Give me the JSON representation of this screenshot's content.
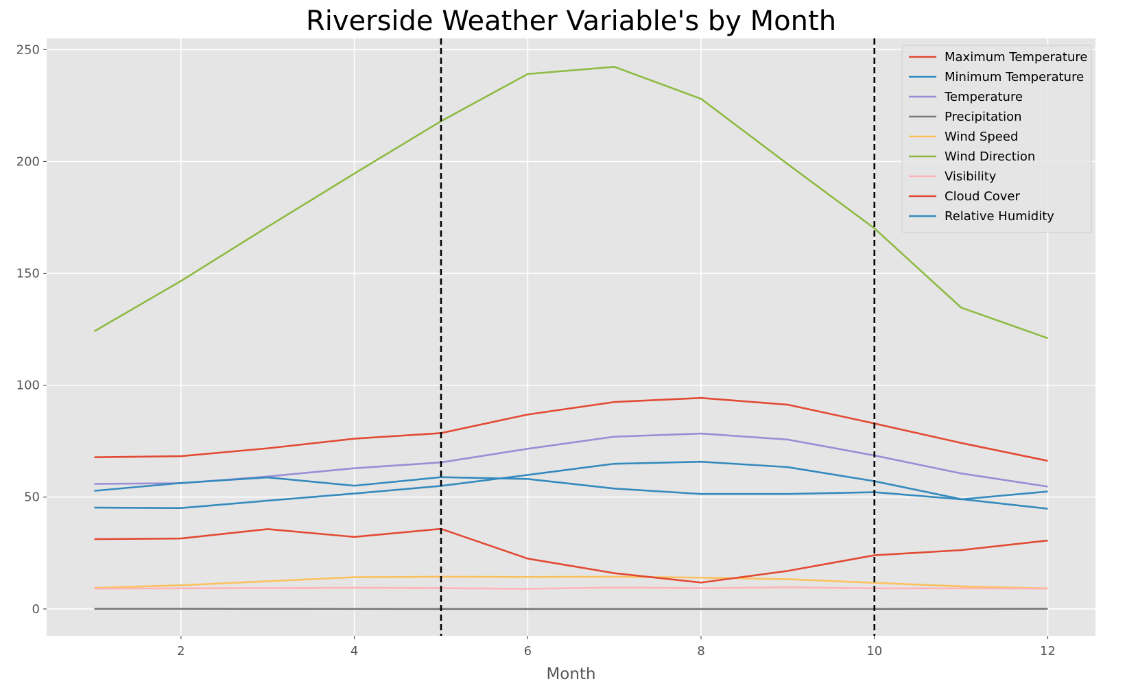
{
  "chart_data": {
    "type": "line",
    "title": "Riverside Weather Variable's by Month",
    "xlabel": "Month",
    "ylabel": "",
    "xlim": [
      0.45,
      12.55
    ],
    "ylim": [
      -12,
      255
    ],
    "xticks": [
      2,
      4,
      6,
      8,
      10,
      12
    ],
    "yticks": [
      0,
      50,
      100,
      150,
      200,
      250
    ],
    "grid": true,
    "legend_position": "top-right",
    "x": [
      1,
      2,
      3,
      4,
      5,
      6,
      7,
      8,
      9,
      10,
      11,
      12
    ],
    "vlines": [
      5,
      10
    ],
    "series": [
      {
        "name": "Maximum Temperature",
        "color": "#E24A33",
        "values": [
          67.8,
          68.3,
          71.8,
          76.1,
          78.6,
          86.9,
          92.5,
          94.3,
          91.3,
          82.9,
          74.2,
          66.2
        ]
      },
      {
        "name": "Minimum Temperature",
        "color": "#348ABD",
        "values": [
          45.3,
          45.1,
          48.4,
          51.6,
          55.0,
          59.9,
          64.9,
          65.8,
          63.4,
          57.1,
          49.1,
          44.8
        ]
      },
      {
        "name": "Temperature",
        "color": "#988ED5",
        "values": [
          55.9,
          56.2,
          59.2,
          62.9,
          65.5,
          71.6,
          77.0,
          78.4,
          75.7,
          68.6,
          60.6,
          54.7
        ]
      },
      {
        "name": "Precipitation",
        "color": "#777777",
        "values": [
          0.1,
          0.1,
          0.05,
          0.03,
          0.01,
          0.0,
          0.0,
          0.0,
          0.01,
          0.02,
          0.05,
          0.08
        ]
      },
      {
        "name": "Wind Speed",
        "color": "#FBC15E",
        "values": [
          9.4,
          10.6,
          12.4,
          14.2,
          14.4,
          14.3,
          14.4,
          14.0,
          13.3,
          11.7,
          10.1,
          9.2
        ]
      },
      {
        "name": "Wind Direction",
        "color": "#8EBA42",
        "values": [
          124.1,
          146.6,
          170.8,
          194.6,
          218.0,
          239.1,
          242.3,
          228.0,
          198.8,
          170.1,
          134.7,
          121.0
        ]
      },
      {
        "name": "Visibility",
        "color": "#FFB5B8",
        "values": [
          9.1,
          9.2,
          9.3,
          9.5,
          9.3,
          9.0,
          9.6,
          9.3,
          9.7,
          9.2,
          9.2,
          9.1
        ]
      },
      {
        "name": "Cloud Cover",
        "color": "#E24A33",
        "values": [
          31.2,
          31.5,
          35.7,
          32.2,
          35.8,
          22.5,
          16.0,
          11.8,
          17.0,
          24.0,
          26.3,
          30.6
        ]
      },
      {
        "name": "Relative Humidity",
        "color": "#348ABD",
        "values": [
          52.8,
          56.3,
          58.8,
          55.1,
          58.9,
          58.1,
          53.8,
          51.4,
          51.4,
          52.2,
          49.0,
          52.5
        ]
      }
    ]
  }
}
